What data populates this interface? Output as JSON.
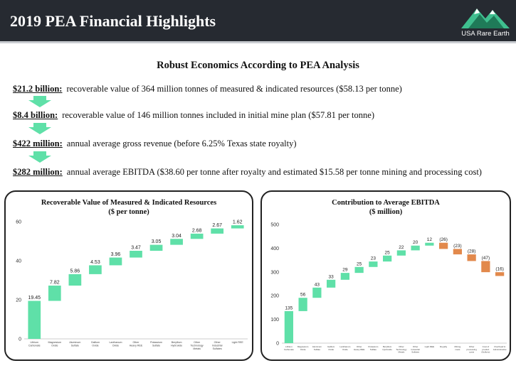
{
  "header": {
    "title": "2019 PEA Financial Highlights",
    "logo_text": "USA Rare Earth"
  },
  "subtitle": "Robust Economics According to PEA Analysis",
  "highlights": [
    {
      "amount": "$21.2 billion:",
      "text": "recoverable value of 364 million tonnes of measured & indicated resources ($58.13 per tonne)"
    },
    {
      "amount": "$8.4 billion:",
      "text": "recoverable value of 146 million tonnes included in initial mine plan ($57.81 per tonne)"
    },
    {
      "amount": "$422 million:",
      "text": "annual average gross revenue (before 6.25% Texas state royalty)"
    },
    {
      "amount": "$282 million:",
      "text": "annual average EBITDA ($38.60 per tonne after royalty and estimated $15.58 per tonne mining and processing cost)"
    }
  ],
  "colors": {
    "header_bg": "#262a31",
    "positive": "#5fe0a8",
    "negative": "#e2894c",
    "arrow": "#5fe0a8"
  },
  "chart_data": [
    {
      "type": "bar",
      "title": "Recoverable Value of Measured & Indicated Resources",
      "subtitle": "($ per tonne)",
      "waterfall": true,
      "ylim": [
        0,
        60
      ],
      "yticks": [
        0,
        20,
        40,
        60
      ],
      "categories": [
        "Lithium Carbonate",
        "Magnesium Oxide",
        "Aluminum Sulfate",
        "Gallium Oxide",
        "Lanthanum Oxide",
        "Other Heavy REE",
        "Potassium Sulfate",
        "Beryllium Hydroxide",
        "Other Technology Metals",
        "Other Industrial Sulfates",
        "Light REE"
      ],
      "values": [
        19.45,
        7.82,
        5.86,
        4.53,
        3.96,
        3.47,
        3.05,
        3.04,
        2.68,
        2.67,
        1.62
      ],
      "labels": [
        "19.45",
        "7.82",
        "5.86",
        "4.53",
        "3.96",
        "3.47",
        "3.05",
        "3.04",
        "2.68",
        "2.67",
        "1.62"
      ]
    },
    {
      "type": "bar",
      "title": "Contribution to Average EBITDA",
      "subtitle": "($ million)",
      "waterfall": true,
      "ylim": [
        0,
        500
      ],
      "yticks": [
        0,
        100,
        200,
        300,
        400,
        500
      ],
      "categories": [
        "Lithium Carbonate",
        "Magnesium Oxide",
        "Aluminum Sulfate",
        "Gallium Oxide",
        "Lanthanum Oxide",
        "Other Heavy REE",
        "Potassium Sulfate",
        "Beryllium Hydroxide",
        "Other Technology Metals",
        "Other Industrial Sulfates",
        "Light REE",
        "Royalty",
        "Mining costs",
        "Other processing costs",
        "Cost of product (Sulfuric)",
        "Overhead & Administrative"
      ],
      "values": [
        135,
        56,
        43,
        33,
        29,
        25,
        23,
        25,
        22,
        20,
        12,
        -26,
        -23,
        -28,
        -47,
        -16
      ],
      "labels": [
        "135",
        "56",
        "43",
        "33",
        "29",
        "25",
        "23",
        "25",
        "22",
        "20",
        "12",
        "(26)",
        "(23)",
        "(28)",
        "(47)",
        "(16)"
      ]
    }
  ]
}
